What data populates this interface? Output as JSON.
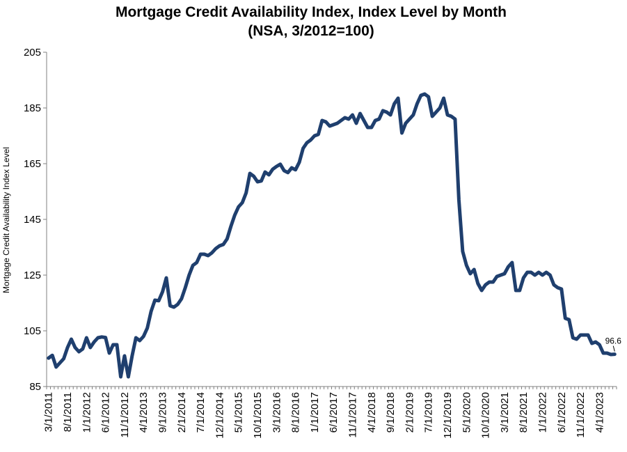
{
  "chart_data": {
    "type": "line",
    "title": "Mortgage Credit Availability Index, Index Level by Month",
    "subtitle": "(NSA, 3/2012=100)",
    "xlabel": "",
    "ylabel": "Mortgage Credit Availability Index Level",
    "ylim": [
      85,
      205
    ],
    "yticks": [
      85,
      105,
      125,
      145,
      165,
      185,
      205
    ],
    "grid": false,
    "start_month": "3/1/2011",
    "x_tick_labels": [
      "3/1/2011",
      "8/1/2011",
      "1/1/2012",
      "6/1/2012",
      "11/1/2012",
      "4/1/2013",
      "9/1/2013",
      "2/1/2014",
      "7/1/2014",
      "12/1/2014",
      "5/1/2015",
      "10/1/2015",
      "3/1/2016",
      "8/1/2016",
      "1/1/2017",
      "6/1/2017",
      "11/1/2017",
      "4/1/2018",
      "9/1/2018",
      "2/1/2019",
      "7/1/2019",
      "12/1/2019",
      "5/1/2020",
      "10/1/2020",
      "3/1/2021",
      "8/1/2021",
      "1/1/2022",
      "6/1/2022",
      "11/1/2022",
      "4/1/2023"
    ],
    "x_tick_every_months": 5,
    "last_value_label": "96.6",
    "series": [
      {
        "name": "Mortgage Credit Availability Index",
        "color": "#1f3f6e",
        "values": [
          95.2,
          96.2,
          92.0,
          93.5,
          95.0,
          99.0,
          102.0,
          99.0,
          97.5,
          98.5,
          102.5,
          99.0,
          101.0,
          102.5,
          102.8,
          102.6,
          97.0,
          100.0,
          100.0,
          88.5,
          96.0,
          88.5,
          96.0,
          102.5,
          101.5,
          103.0,
          106.0,
          112.0,
          116.0,
          115.8,
          119.0,
          124.0,
          114.0,
          113.5,
          114.5,
          116.5,
          120.5,
          125.0,
          128.5,
          129.5,
          132.5,
          132.5,
          132.0,
          133.0,
          134.5,
          135.5,
          136.0,
          138.0,
          142.5,
          146.5,
          149.5,
          151.0,
          154.5,
          161.5,
          160.5,
          158.5,
          158.8,
          162.0,
          161.0,
          163.0,
          164.0,
          164.8,
          162.5,
          161.8,
          163.5,
          162.8,
          165.5,
          170.5,
          172.5,
          173.5,
          175.0,
          175.5,
          180.5,
          180.0,
          178.5,
          179.0,
          179.5,
          180.5,
          181.5,
          181.0,
          182.5,
          179.5,
          183.0,
          180.5,
          178.0,
          178.0,
          180.5,
          181.0,
          184.0,
          183.5,
          182.5,
          186.5,
          188.5,
          176.0,
          179.5,
          181.0,
          182.5,
          186.5,
          189.5,
          190.0,
          189.0,
          182.0,
          183.5,
          185.0,
          188.5,
          182.5,
          182.0,
          181.0,
          152.0,
          133.5,
          128.5,
          125.5,
          127.0,
          122.0,
          119.5,
          121.5,
          122.5,
          122.5,
          124.5,
          125.0,
          125.5,
          128.0,
          129.5,
          119.5,
          119.5,
          124.0,
          126.0,
          126.0,
          125.0,
          126.0,
          125.0,
          126.0,
          125.0,
          121.5,
          120.5,
          120.0,
          109.5,
          109.0,
          102.5,
          102.0,
          103.5,
          103.5,
          103.5,
          100.5,
          101.0,
          100.0,
          97.0,
          97.0,
          96.5,
          96.6
        ]
      }
    ]
  }
}
